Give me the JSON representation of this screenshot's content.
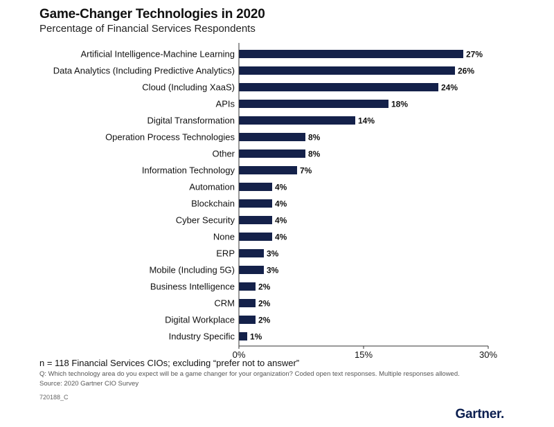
{
  "header": {
    "title": "Game-Changer Technologies in 2020",
    "subtitle": "Percentage of Financial Services Respondents"
  },
  "footer": {
    "note": "n = 118 Financial Services CIOs; excluding “prefer not to answer”",
    "question": "Q: Which technology area do you expect will be a game changer for your organization? Coded open text responses. Multiple responses allowed.",
    "source": "Source: 2020 Gartner CIO Survey",
    "code": "720188_C",
    "logo": "Gartner."
  },
  "colors": {
    "bar": "#14214a",
    "axis": "#333333",
    "logo": "#0b1e4f"
  },
  "chart_data": {
    "type": "bar",
    "orientation": "horizontal",
    "title": "Game-Changer Technologies in 2020",
    "subtitle": "Percentage of Financial Services Respondents",
    "categories": [
      "Artificial Intelligence-Machine Learning",
      "Data Analytics (Including Predictive Analytics)",
      "Cloud (Including XaaS)",
      "APIs",
      "Digital Transformation",
      "Operation Process Technologies",
      "Other",
      "Information Technology",
      "Automation",
      "Blockchain",
      "Cyber Security",
      "None",
      "ERP",
      "Mobile (Including 5G)",
      "Business Intelligence",
      "CRM",
      "Digital Workplace",
      "Industry Specific"
    ],
    "values": [
      27,
      26,
      24,
      18,
      14,
      8,
      8,
      7,
      4,
      4,
      4,
      4,
      3,
      3,
      2,
      2,
      2,
      1
    ],
    "value_labels": [
      "27%",
      "26%",
      "24%",
      "18%",
      "14%",
      "8%",
      "8%",
      "7%",
      "4%",
      "4%",
      "4%",
      "4%",
      "3%",
      "3%",
      "2%",
      "2%",
      "2%",
      "1%"
    ],
    "xlim": [
      0,
      30
    ],
    "xticks": [
      0,
      15,
      30
    ],
    "xtick_labels": [
      "0%",
      "15%",
      "30%"
    ],
    "grid": false,
    "legend": "none"
  }
}
